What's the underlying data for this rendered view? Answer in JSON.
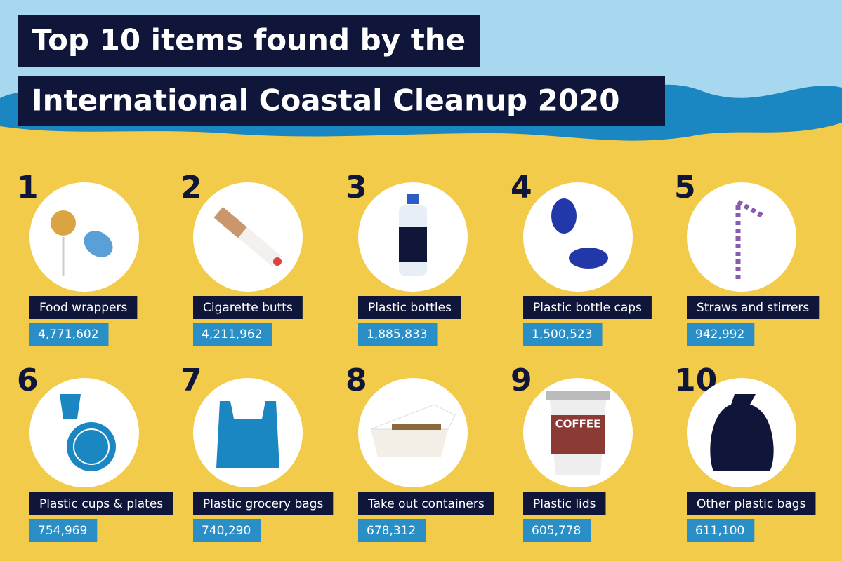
{
  "title": {
    "line1": "Top 10 items found by the",
    "line2": "International Coastal Cleanup 2020"
  },
  "items": [
    {
      "rank": "1",
      "label": "Food wrappers",
      "count": "4,771,602"
    },
    {
      "rank": "2",
      "label": "Cigarette butts",
      "count": "4,211,962"
    },
    {
      "rank": "3",
      "label": "Plastic bottles",
      "count": "1,885,833"
    },
    {
      "rank": "4",
      "label": "Plastic bottle caps",
      "count": "1,500,523"
    },
    {
      "rank": "5",
      "label": "Straws and stirrers",
      "count": "942,992"
    },
    {
      "rank": "6",
      "label": "Plastic cups & plates",
      "count": "754,969"
    },
    {
      "rank": "7",
      "label": "Plastic grocery bags",
      "count": "740,290"
    },
    {
      "rank": "8",
      "label": "Take out containers",
      "count": "678,312"
    },
    {
      "rank": "9",
      "label": "Plastic lids",
      "count": "605,778",
      "icon_text": "COFFEE"
    },
    {
      "rank": "10",
      "label": "Other plastic bags",
      "count": "611,100"
    }
  ]
}
